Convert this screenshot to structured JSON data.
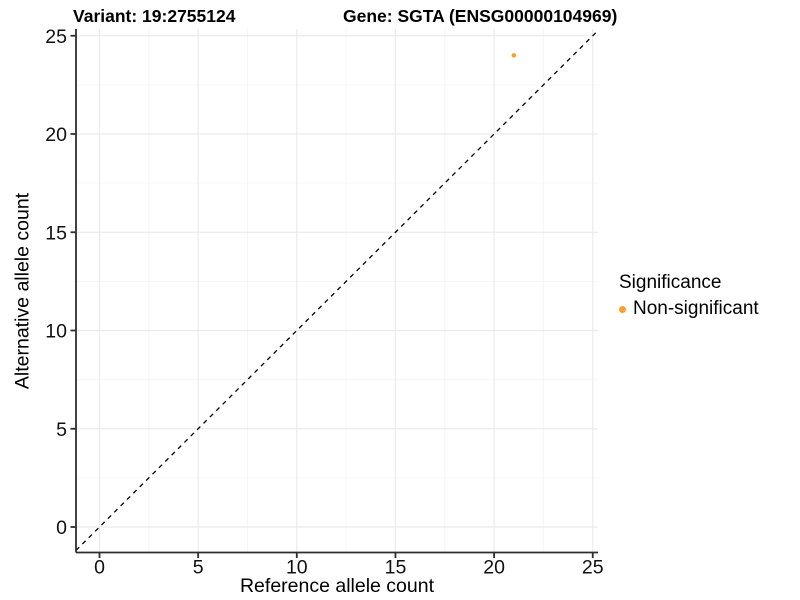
{
  "titles": {
    "variant": "Variant: 19:2755124",
    "gene": "Gene: SGTA (ENSG00000104969)"
  },
  "chart_data": {
    "type": "scatter",
    "title": "Variant: 19:2755124  /  Gene: SGTA (ENSG00000104969)",
    "xlabel": "Reference allele count",
    "ylabel": "Alternative allele count",
    "xlim": [
      0,
      25
    ],
    "ylim": [
      0,
      25
    ],
    "xticks": [
      0,
      5,
      10,
      15,
      20,
      25
    ],
    "yticks": [
      0,
      5,
      10,
      15,
      20,
      25
    ],
    "grid": "major-and-minor",
    "identity_line": {
      "equation": "y = x",
      "style": "dashed",
      "color": "#000000"
    },
    "series": [
      {
        "name": "Non-significant",
        "color": "#F7A12F",
        "points": [
          {
            "x": 21,
            "y": 24
          }
        ]
      }
    ],
    "legend": {
      "title": "Significance",
      "position": "right",
      "items": [
        {
          "label": "Non-significant",
          "color": "#F7A12F"
        }
      ]
    }
  },
  "colors": {
    "background": "#ffffff",
    "axis_line": "#2e2e2e",
    "tick_label": "#111111",
    "grid_major": "#ebebeb",
    "grid_minor": "#f6f6f6",
    "significant_point": "#F7A12F"
  }
}
